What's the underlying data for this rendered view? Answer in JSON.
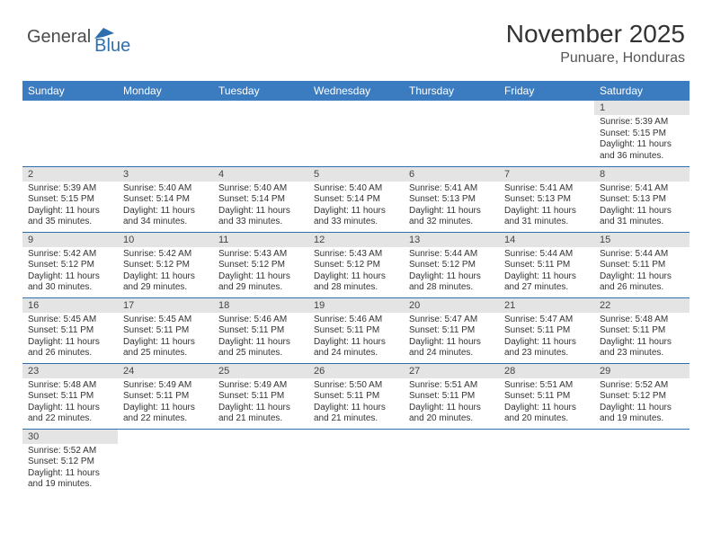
{
  "logo": {
    "general": "General",
    "blue": "Blue"
  },
  "title": "November 2025",
  "location": "Punuare, Honduras",
  "colors": {
    "header_bg": "#3b7bbf",
    "header_text": "#ffffff",
    "daynum_bg": "#e4e4e4",
    "row_border": "#2f6fb0",
    "logo_gray": "#4b4b4b",
    "logo_blue": "#2f6fb0"
  },
  "weekdays": [
    "Sunday",
    "Monday",
    "Tuesday",
    "Wednesday",
    "Thursday",
    "Friday",
    "Saturday"
  ],
  "weeks": [
    [
      null,
      null,
      null,
      null,
      null,
      null,
      {
        "n": "1",
        "sr": "Sunrise: 5:39 AM",
        "ss": "Sunset: 5:15 PM",
        "dl": "Daylight: 11 hours and 36 minutes."
      }
    ],
    [
      {
        "n": "2",
        "sr": "Sunrise: 5:39 AM",
        "ss": "Sunset: 5:15 PM",
        "dl": "Daylight: 11 hours and 35 minutes."
      },
      {
        "n": "3",
        "sr": "Sunrise: 5:40 AM",
        "ss": "Sunset: 5:14 PM",
        "dl": "Daylight: 11 hours and 34 minutes."
      },
      {
        "n": "4",
        "sr": "Sunrise: 5:40 AM",
        "ss": "Sunset: 5:14 PM",
        "dl": "Daylight: 11 hours and 33 minutes."
      },
      {
        "n": "5",
        "sr": "Sunrise: 5:40 AM",
        "ss": "Sunset: 5:14 PM",
        "dl": "Daylight: 11 hours and 33 minutes."
      },
      {
        "n": "6",
        "sr": "Sunrise: 5:41 AM",
        "ss": "Sunset: 5:13 PM",
        "dl": "Daylight: 11 hours and 32 minutes."
      },
      {
        "n": "7",
        "sr": "Sunrise: 5:41 AM",
        "ss": "Sunset: 5:13 PM",
        "dl": "Daylight: 11 hours and 31 minutes."
      },
      {
        "n": "8",
        "sr": "Sunrise: 5:41 AM",
        "ss": "Sunset: 5:13 PM",
        "dl": "Daylight: 11 hours and 31 minutes."
      }
    ],
    [
      {
        "n": "9",
        "sr": "Sunrise: 5:42 AM",
        "ss": "Sunset: 5:12 PM",
        "dl": "Daylight: 11 hours and 30 minutes."
      },
      {
        "n": "10",
        "sr": "Sunrise: 5:42 AM",
        "ss": "Sunset: 5:12 PM",
        "dl": "Daylight: 11 hours and 29 minutes."
      },
      {
        "n": "11",
        "sr": "Sunrise: 5:43 AM",
        "ss": "Sunset: 5:12 PM",
        "dl": "Daylight: 11 hours and 29 minutes."
      },
      {
        "n": "12",
        "sr": "Sunrise: 5:43 AM",
        "ss": "Sunset: 5:12 PM",
        "dl": "Daylight: 11 hours and 28 minutes."
      },
      {
        "n": "13",
        "sr": "Sunrise: 5:44 AM",
        "ss": "Sunset: 5:12 PM",
        "dl": "Daylight: 11 hours and 28 minutes."
      },
      {
        "n": "14",
        "sr": "Sunrise: 5:44 AM",
        "ss": "Sunset: 5:11 PM",
        "dl": "Daylight: 11 hours and 27 minutes."
      },
      {
        "n": "15",
        "sr": "Sunrise: 5:44 AM",
        "ss": "Sunset: 5:11 PM",
        "dl": "Daylight: 11 hours and 26 minutes."
      }
    ],
    [
      {
        "n": "16",
        "sr": "Sunrise: 5:45 AM",
        "ss": "Sunset: 5:11 PM",
        "dl": "Daylight: 11 hours and 26 minutes."
      },
      {
        "n": "17",
        "sr": "Sunrise: 5:45 AM",
        "ss": "Sunset: 5:11 PM",
        "dl": "Daylight: 11 hours and 25 minutes."
      },
      {
        "n": "18",
        "sr": "Sunrise: 5:46 AM",
        "ss": "Sunset: 5:11 PM",
        "dl": "Daylight: 11 hours and 25 minutes."
      },
      {
        "n": "19",
        "sr": "Sunrise: 5:46 AM",
        "ss": "Sunset: 5:11 PM",
        "dl": "Daylight: 11 hours and 24 minutes."
      },
      {
        "n": "20",
        "sr": "Sunrise: 5:47 AM",
        "ss": "Sunset: 5:11 PM",
        "dl": "Daylight: 11 hours and 24 minutes."
      },
      {
        "n": "21",
        "sr": "Sunrise: 5:47 AM",
        "ss": "Sunset: 5:11 PM",
        "dl": "Daylight: 11 hours and 23 minutes."
      },
      {
        "n": "22",
        "sr": "Sunrise: 5:48 AM",
        "ss": "Sunset: 5:11 PM",
        "dl": "Daylight: 11 hours and 23 minutes."
      }
    ],
    [
      {
        "n": "23",
        "sr": "Sunrise: 5:48 AM",
        "ss": "Sunset: 5:11 PM",
        "dl": "Daylight: 11 hours and 22 minutes."
      },
      {
        "n": "24",
        "sr": "Sunrise: 5:49 AM",
        "ss": "Sunset: 5:11 PM",
        "dl": "Daylight: 11 hours and 22 minutes."
      },
      {
        "n": "25",
        "sr": "Sunrise: 5:49 AM",
        "ss": "Sunset: 5:11 PM",
        "dl": "Daylight: 11 hours and 21 minutes."
      },
      {
        "n": "26",
        "sr": "Sunrise: 5:50 AM",
        "ss": "Sunset: 5:11 PM",
        "dl": "Daylight: 11 hours and 21 minutes."
      },
      {
        "n": "27",
        "sr": "Sunrise: 5:51 AM",
        "ss": "Sunset: 5:11 PM",
        "dl": "Daylight: 11 hours and 20 minutes."
      },
      {
        "n": "28",
        "sr": "Sunrise: 5:51 AM",
        "ss": "Sunset: 5:11 PM",
        "dl": "Daylight: 11 hours and 20 minutes."
      },
      {
        "n": "29",
        "sr": "Sunrise: 5:52 AM",
        "ss": "Sunset: 5:12 PM",
        "dl": "Daylight: 11 hours and 19 minutes."
      }
    ],
    [
      {
        "n": "30",
        "sr": "Sunrise: 5:52 AM",
        "ss": "Sunset: 5:12 PM",
        "dl": "Daylight: 11 hours and 19 minutes."
      },
      null,
      null,
      null,
      null,
      null,
      null
    ]
  ]
}
